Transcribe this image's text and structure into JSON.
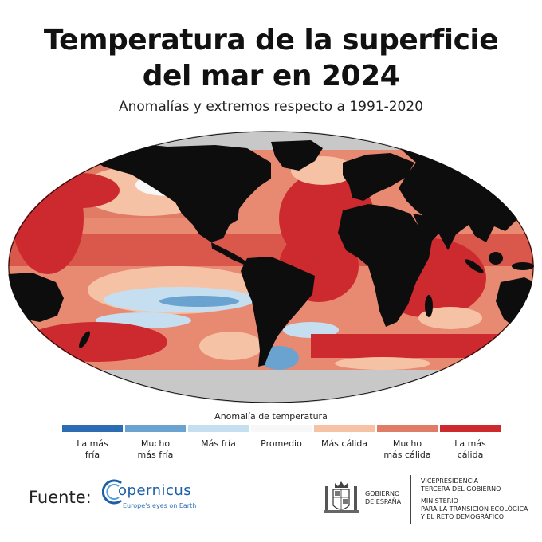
{
  "title_line1": "Temperatura de la superficie",
  "title_line2": "del mar en 2024",
  "subtitle": "Anomalías y extremos respecto a 1991-2020",
  "legend": {
    "title": "Anomalía de temperatura",
    "items": [
      {
        "line1": "La más",
        "line2": "fría",
        "color": "#2b6cb3"
      },
      {
        "line1": "Mucho",
        "line2": "más fría",
        "color": "#6aa3cf"
      },
      {
        "line1": "Más fría",
        "line2": "",
        "color": "#c5dff0"
      },
      {
        "line1": "Promedio",
        "line2": "",
        "color": "#f7f7f7"
      },
      {
        "line1": "Más cálida",
        "line2": "",
        "color": "#f6c2a5"
      },
      {
        "line1": "Mucho",
        "line2": "más cálida",
        "color": "#e07b66"
      },
      {
        "line1": "La más",
        "line2": "cálida",
        "color": "#cc2a2e"
      }
    ]
  },
  "colors": {
    "land": "#0d0d0d",
    "ice": "#c8c8c8",
    "warmest": "#cc2a2e",
    "much_warmer": "#e07b66",
    "warmer": "#f6c2a5",
    "average": "#f7f7f7",
    "cooler": "#c5dff0",
    "much_cooler": "#6aa3cf"
  },
  "source_label": "Fuente:",
  "copernicus": {
    "name": "opernicus",
    "tagline": "Europe's eyes on Earth"
  },
  "government": {
    "line1": "GOBIERNO",
    "line2": "DE ESPAÑA",
    "vice_line1": "VICEPRESIDENCIA",
    "vice_line2": "TERCERA DEL GOBIERNO",
    "min_line1": "MINISTERIO",
    "min_line2": "PARA LA TRANSICIÓN ECOLÓGICA",
    "min_line3": "Y EL RETO DEMOGRÁFICO"
  }
}
